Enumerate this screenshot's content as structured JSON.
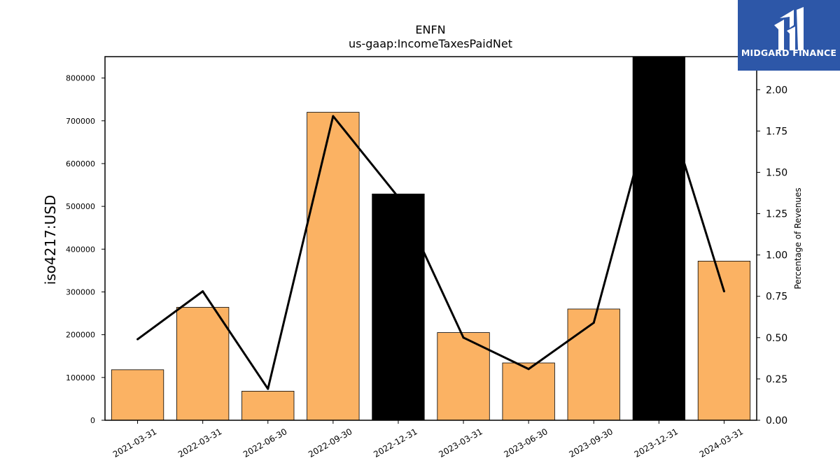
{
  "chart_data": {
    "type": "bar",
    "title": "ENFN",
    "subtitle": "us-gaap:IncomeTaxesPaidNet",
    "ylabel": "iso4217:USD",
    "y2label": "Percentage of Revenues",
    "categories": [
      "2021-03-31",
      "2022-03-31",
      "2022-06-30",
      "2022-09-30",
      "2022-12-31",
      "2023-03-31",
      "2023-06-30",
      "2023-09-30",
      "2023-12-31",
      "2024-03-31"
    ],
    "values": [
      118000,
      264000,
      68000,
      720000,
      529000,
      205000,
      134000,
      260000,
      850000,
      372000
    ],
    "bar_colors": [
      "#fbb263",
      "#fbb263",
      "#fbb263",
      "#fbb263",
      "#000000",
      "#fbb263",
      "#fbb263",
      "#fbb263",
      "#000000",
      "#fbb263"
    ],
    "line_series": {
      "values": [
        0.49,
        0.78,
        0.19,
        1.84,
        1.35,
        0.5,
        0.31,
        0.59,
        2.05,
        0.78
      ]
    },
    "ylim": [
      0,
      850000
    ],
    "y2lim": [
      0,
      2.2
    ],
    "yticks": [
      "0",
      "100000",
      "200000",
      "300000",
      "400000",
      "500000",
      "600000",
      "700000",
      "800000"
    ],
    "y2ticks": [
      "0.00",
      "0.25",
      "0.50",
      "0.75",
      "1.00",
      "1.25",
      "1.50",
      "1.75",
      "2.00"
    ],
    "line_color": "#000000",
    "grid": false
  },
  "logo": {
    "text": "MIDGARD FINANCE",
    "background": "#2d57a8"
  }
}
